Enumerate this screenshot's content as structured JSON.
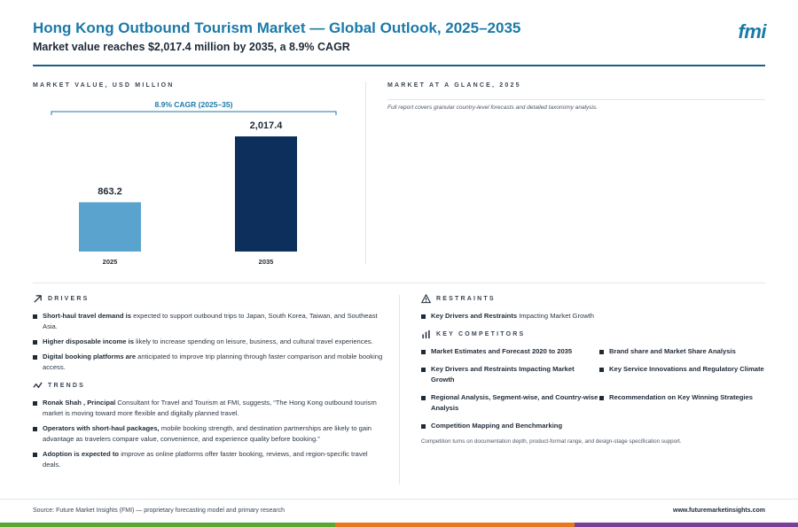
{
  "header": {
    "title": "Hong Kong Outbound Tourism Market — Global Outlook, 2025–2035",
    "subtitle": "Market value reaches $2,017.4 million by 2035, a 8.9% CAGR",
    "logo_text": "fmi"
  },
  "chart_section": {
    "label": "MARKET VALUE, USD MILLION"
  },
  "chart_data": {
    "type": "bar",
    "categories": [
      "2025",
      "2035"
    ],
    "values": [
      863.2,
      2017.4
    ],
    "value_labels": [
      "863.2",
      "2,017.4"
    ],
    "colors": [
      "#5ba3cf",
      "#0d2f5c"
    ],
    "annotation": "8.9% CAGR (2025–35)",
    "ylim": [
      0,
      2017.4
    ],
    "title": "",
    "xlabel": "",
    "ylabel": ""
  },
  "glance": {
    "label": "MARKET AT A GLANCE, 2025",
    "note": "Full report covers granular country-level forecasts and detailed taxonomy analysis."
  },
  "drivers": {
    "label": "DRIVERS",
    "items": [
      {
        "bold": "Short-haul travel demand is",
        "text": " expected to support outbound trips to Japan, South Korea, Taiwan, and Southeast Asia."
      },
      {
        "bold": "Higher disposable income is",
        "text": " likely to increase spending on leisure, business, and cultural travel experiences."
      },
      {
        "bold": "Digital booking platforms are",
        "text": " anticipated to improve trip planning through faster comparison and mobile booking access."
      }
    ]
  },
  "trends": {
    "label": "TRENDS",
    "items": [
      {
        "bold": "Ronak Shah , Principal",
        "text": " Consultant for Travel and Tourism at FMI, suggests, “The Hong Kong outbound tourism market is moving toward more flexible and digitally planned travel."
      },
      {
        "bold": "Operators with short-haul packages,",
        "text": " mobile booking strength, and destination partnerships are likely to gain advantage as travelers compare value, convenience, and experience quality before booking.”"
      },
      {
        "bold": "Adoption is expected to",
        "text": " improve as online platforms offer faster booking, reviews, and region-specific travel deals."
      }
    ]
  },
  "restraints": {
    "label": "RESTRAINTS",
    "items": [
      {
        "bold": "Key Drivers and Restraints",
        "text": " Impacting Market Growth"
      }
    ]
  },
  "competitors": {
    "label": "KEY COMPETITORS",
    "items": [
      "Market Estimates and Forecast 2020 to 2035",
      "Brand share and Market Share Analysis",
      "Key Drivers and Restraints Impacting Market Growth",
      "Key Service Innovations and Regulatory Climate",
      "Regional Analysis, Segment-wise, and Country-wise Analysis",
      "Recommendation on Key Winning Strategies",
      "Competition Mapping and Benchmarking"
    ],
    "note": "Competition turns on documentation depth, product-format range, and design-stage specification support."
  },
  "footer": {
    "source": "Source: Future Market Insights (FMI) — proprietary forecasting model and primary research",
    "url": "www.futuremarketinsights.com",
    "bar_colors": [
      "#5aa832",
      "#e87722",
      "#7b3f98"
    ]
  }
}
